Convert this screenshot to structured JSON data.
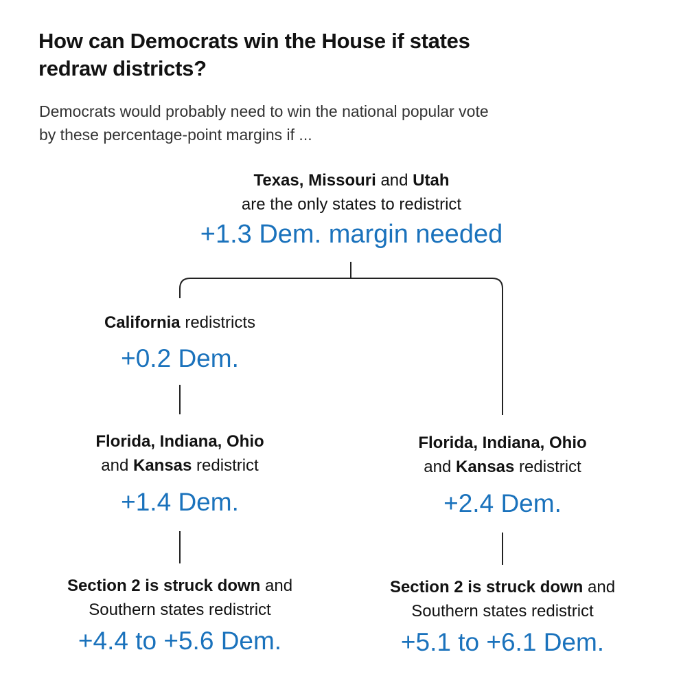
{
  "header": {
    "title_line1": "How can Democrats win the House if states",
    "title_line2": "redraw districts?",
    "subtitle_line1": "Democrats would probably need to win the national popular vote",
    "subtitle_line2": "by these percentage-point margins if ..."
  },
  "tree": {
    "root": {
      "states": [
        "Texas,",
        "Missouri",
        "and",
        "Utah"
      ],
      "line2": "are the only states to redistrict",
      "value": "+1.3 Dem. margin needed"
    },
    "left": {
      "level1": {
        "bold": "California",
        "rest": " redistricts",
        "value": "+0.2 Dem."
      },
      "level2": {
        "bold1": "Florida, Indiana, Ohio",
        "and": "and ",
        "bold2": "Kansas",
        "rest": " redistrict",
        "value": "+1.4 Dem."
      },
      "level3": {
        "bold": "Section 2 is struck down",
        "rest1": " and",
        "line2": "Southern states redistrict",
        "value": "+4.4 to +5.6 Dem."
      }
    },
    "right": {
      "level2": {
        "bold1": "Florida, Indiana, Ohio",
        "and": "and ",
        "bold2": "Kansas",
        "rest": " redistrict",
        "value": "+2.4 Dem."
      },
      "level3": {
        "bold": "Section 2 is struck down",
        "rest1": " and",
        "line2": "Southern states redistrict",
        "value": "+5.1 to +6.1 Dem."
      }
    }
  },
  "colors": {
    "value_blue": "#1a72bc",
    "text": "#121212",
    "line": "#222222"
  }
}
